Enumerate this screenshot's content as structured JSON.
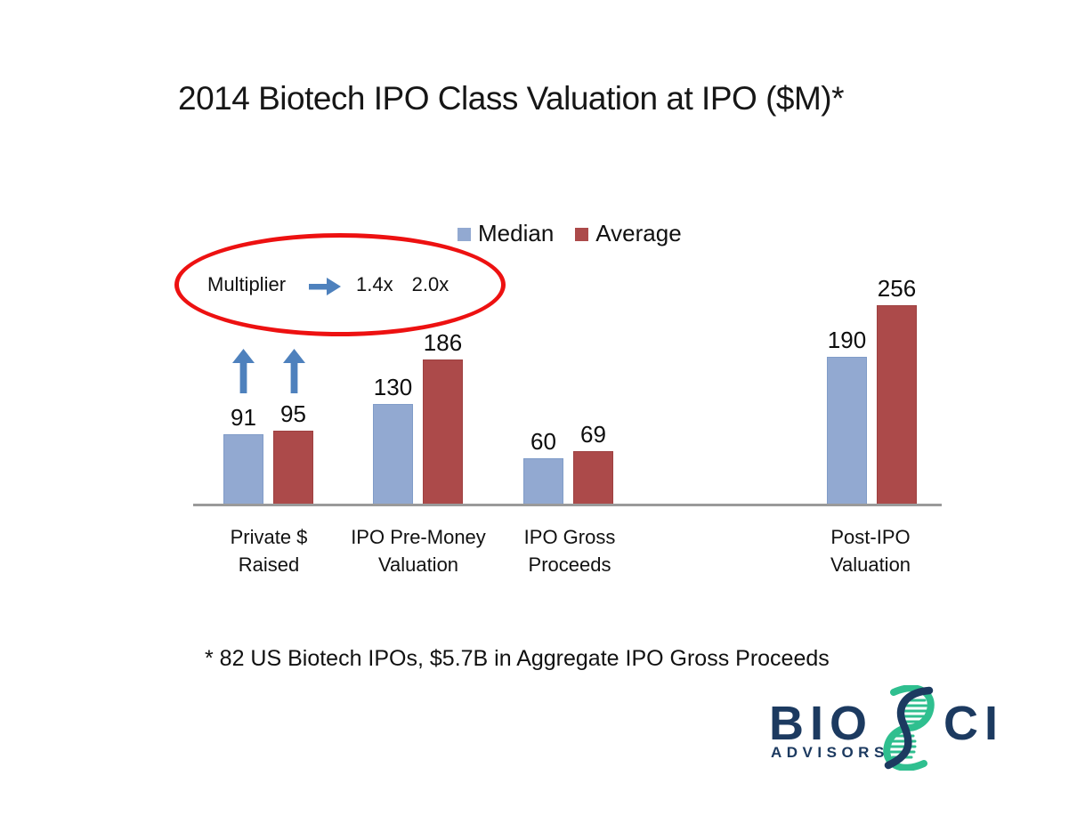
{
  "title": "2014 Biotech IPO Class Valuation at IPO ($M)*",
  "chart_data": {
    "type": "bar",
    "categories": [
      "Private $ Raised",
      "IPO Pre-Money Valuation",
      "IPO Gross Proceeds",
      "Post-IPO Valuation"
    ],
    "series": [
      {
        "name": "Median",
        "color": "#92A9D1",
        "edge": "#809CC8",
        "values": [
          91,
          130,
          60,
          190
        ]
      },
      {
        "name": "Average",
        "color": "#AC4A4A",
        "edge": "#9E4040",
        "values": [
          95,
          186,
          69,
          256
        ]
      }
    ],
    "title": "2014 Biotech IPO Class Valuation at IPO ($M)*",
    "xlabel": "",
    "ylabel": "",
    "ylim": [
      0,
      290
    ],
    "gridlines": false,
    "legend_position": "top",
    "data_labels": true
  },
  "annotation": {
    "label": "Multiplier",
    "median_multiple": "1.4x",
    "average_multiple": "2.0x",
    "ellipse_color": "#ED1111",
    "arrow_color": "#4E81BD"
  },
  "footnote": "* 82 US Biotech IPOs, $5.7B in Aggregate IPO Gross Proceeds",
  "logo": {
    "part1": "BIO",
    "part2": "CI",
    "subtext": "ADVISORS",
    "navy": "#1C3A60",
    "green": "#2FBF8F"
  }
}
